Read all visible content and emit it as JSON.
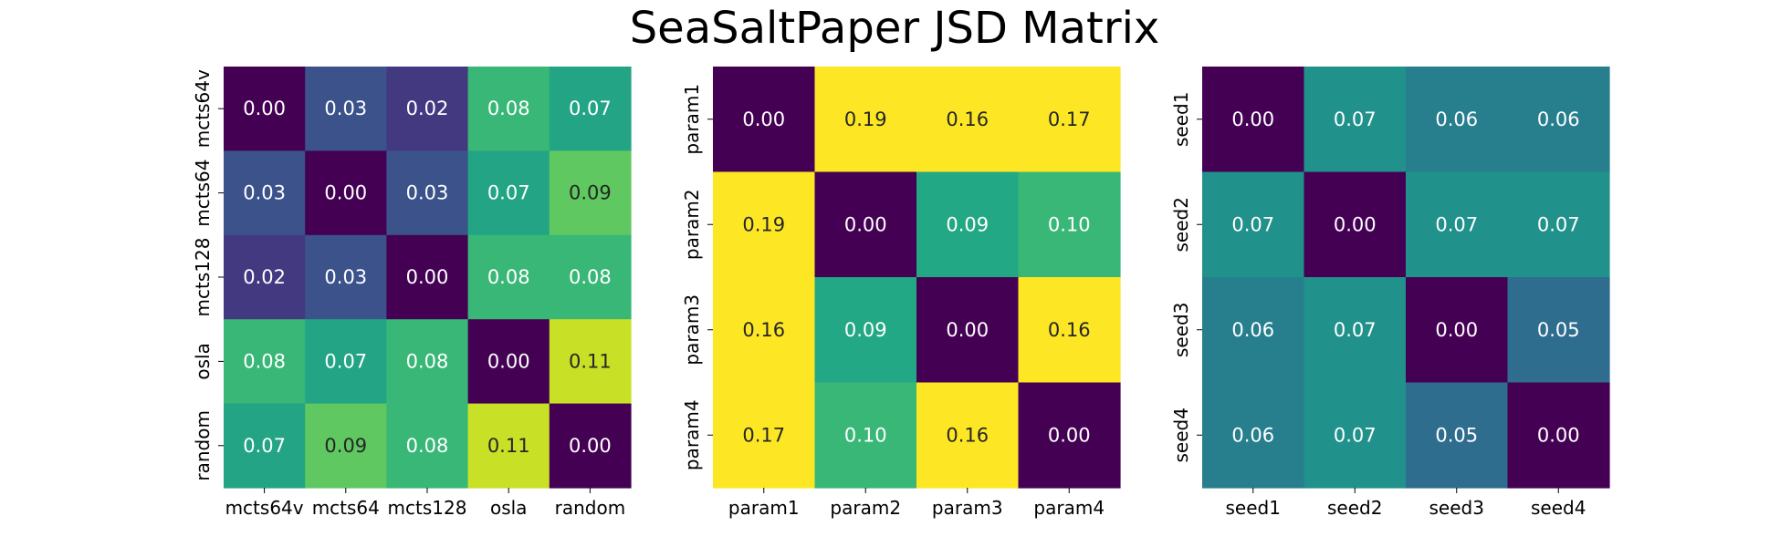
{
  "title": "SeaSaltPaper JSD Matrix",
  "chart_data": [
    {
      "type": "heatmap",
      "labels": [
        "mcts64v",
        "mcts64",
        "mcts128",
        "osla",
        "random"
      ],
      "values": [
        [
          0.0,
          0.03,
          0.02,
          0.08,
          0.07
        ],
        [
          0.03,
          0.0,
          0.03,
          0.07,
          0.09
        ],
        [
          0.02,
          0.03,
          0.0,
          0.08,
          0.08
        ],
        [
          0.08,
          0.07,
          0.08,
          0.0,
          0.11
        ],
        [
          0.07,
          0.09,
          0.08,
          0.11,
          0.0
        ]
      ],
      "vmin": 0.0,
      "vmax": 0.12,
      "colormap": "viridis",
      "annotated": true
    },
    {
      "type": "heatmap",
      "labels": [
        "param1",
        "param2",
        "param3",
        "param4"
      ],
      "values": [
        [
          0.0,
          0.19,
          0.16,
          0.17
        ],
        [
          0.19,
          0.0,
          0.09,
          0.1
        ],
        [
          0.16,
          0.09,
          0.0,
          0.16
        ],
        [
          0.17,
          0.1,
          0.16,
          0.0
        ]
      ],
      "vmin": 0.0,
      "vmax": 0.15,
      "colormap": "viridis",
      "annotated": true
    },
    {
      "type": "heatmap",
      "labels": [
        "seed1",
        "seed2",
        "seed3",
        "seed4"
      ],
      "values": [
        [
          0.0,
          0.07,
          0.06,
          0.06
        ],
        [
          0.07,
          0.0,
          0.07,
          0.07
        ],
        [
          0.06,
          0.07,
          0.0,
          0.05
        ],
        [
          0.06,
          0.07,
          0.05,
          0.0
        ]
      ],
      "vmin": 0.0,
      "vmax": 0.14,
      "colormap": "viridis",
      "annotated": true
    }
  ]
}
